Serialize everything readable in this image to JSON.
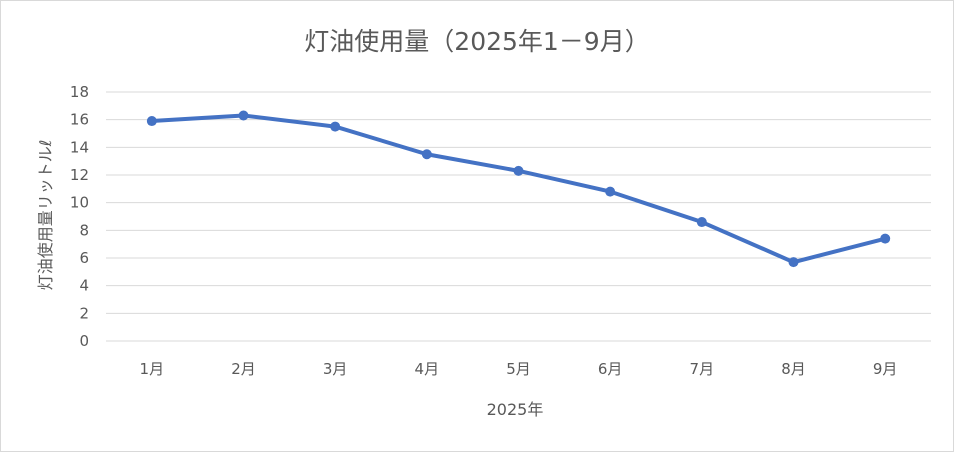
{
  "chart_data": {
    "type": "line",
    "title": "灯油使用量（2025年1－9月）",
    "xlabel": "2025年",
    "ylabel": "灯油使用量リットルℓ",
    "categories": [
      "1月",
      "2月",
      "3月",
      "4月",
      "5月",
      "6月",
      "7月",
      "8月",
      "9月"
    ],
    "series": [
      {
        "values": [
          15.9,
          16.3,
          15.5,
          13.5,
          12.3,
          10.8,
          8.6,
          5.7,
          7.4
        ],
        "color": "#4472c4"
      }
    ],
    "ylim": [
      0,
      18
    ],
    "yticks": [
      0,
      2,
      4,
      6,
      8,
      10,
      12,
      14,
      16,
      18
    ],
    "grid": true,
    "legend": "none",
    "gridColor": "#d9d9d9",
    "textColor": "#595959"
  }
}
